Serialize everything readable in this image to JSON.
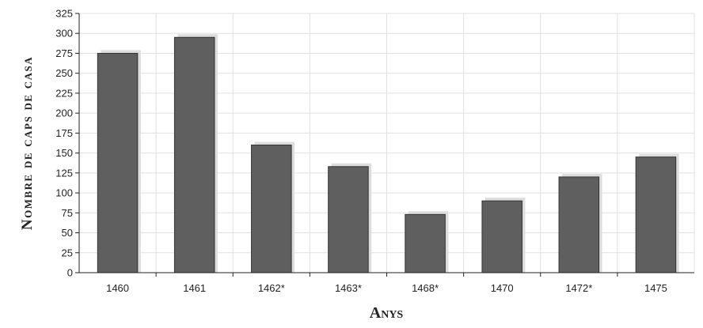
{
  "chart_data": {
    "type": "bar",
    "categories": [
      "1460",
      "1461",
      "1462*",
      "1463*",
      "1468*",
      "1470",
      "1472*",
      "1475"
    ],
    "values": [
      275,
      295,
      160,
      133,
      73,
      90,
      120,
      145
    ],
    "title": "",
    "xlabel": "Anys",
    "ylabel": "Nombre de caps de casa",
    "ylim": [
      0,
      325
    ],
    "yticks": [
      0,
      25,
      50,
      75,
      100,
      125,
      150,
      175,
      200,
      225,
      250,
      275,
      300,
      325
    ],
    "grid": true,
    "legend": "none",
    "bar_color": "#5f5f5f",
    "shadow_color": "#dddddd",
    "grid_color": "#e0e0e0"
  }
}
